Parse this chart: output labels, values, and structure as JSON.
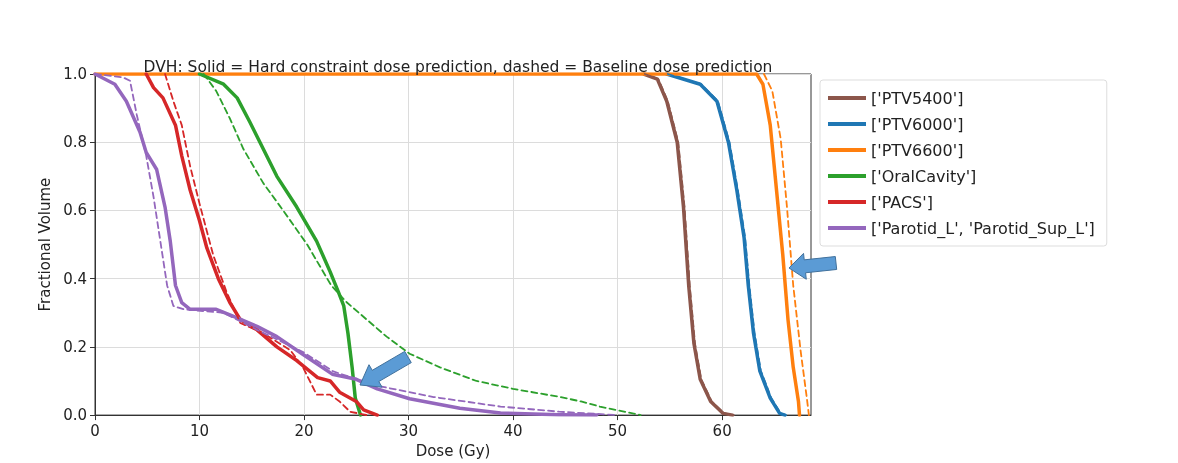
{
  "chart_data": {
    "type": "line",
    "title": "DVH: Solid = Hard constraint dose prediction, dashed = Baseline dose prediction",
    "xlabel": "Dose (Gy)",
    "ylabel": "Fractional Volume",
    "xlim": [
      0,
      68.5
    ],
    "ylim": [
      0,
      1
    ],
    "xticks": [
      0,
      10,
      20,
      30,
      40,
      50,
      60
    ],
    "yticks": [
      {
        "value": 0,
        "label": "0.0"
      },
      {
        "value": 0.2,
        "label": "0.2"
      },
      {
        "value": 0.4,
        "label": "0.4"
      },
      {
        "value": 0.6,
        "label": "0.6"
      },
      {
        "value": 0.8,
        "label": "0.8"
      },
      {
        "value": 1,
        "label": "1.0"
      }
    ],
    "grid": true,
    "legend": "top right",
    "marker": "none",
    "series": [
      {
        "name": "['PTV5400']",
        "color": "#8c564b",
        "line_style": "solid",
        "x": [
          52.5,
          53.8,
          54.7,
          55.7,
          56.3,
          56.8,
          57.3,
          57.9,
          58.9,
          60.1,
          61
        ],
        "values": [
          1,
          0.985,
          0.92,
          0.8,
          0.61,
          0.38,
          0.21,
          0.105,
          0.04,
          0.005,
          0
        ]
      },
      {
        "name": "['PTV6000']",
        "color": "#1f77b4",
        "line_style": "solid",
        "x": [
          54.7,
          57.9,
          59.5,
          60.6,
          61.4,
          62.1,
          62.5,
          63,
          63.6,
          64.6,
          65.5,
          66
        ],
        "values": [
          1,
          0.97,
          0.92,
          0.8,
          0.66,
          0.52,
          0.38,
          0.24,
          0.13,
          0.05,
          0.005,
          0
        ]
      },
      {
        "name": "['PTV6600']",
        "color": "#ff7f0e",
        "line_style": "solid",
        "x": [
          0,
          63.3,
          63.9,
          64.6,
          65.2,
          65.8,
          66.3,
          66.8,
          67.3,
          67.4
        ],
        "values": [
          1,
          1,
          0.97,
          0.85,
          0.66,
          0.47,
          0.28,
          0.14,
          0.04,
          0
        ]
      },
      {
        "name": "['OralCavity']",
        "color": "#2ca02c",
        "line_style": "solid",
        "x": [
          10,
          12.3,
          13.6,
          14.8,
          16.1,
          17.4,
          19.3,
          21.2,
          22.5,
          23.3,
          23.8,
          24.2,
          24.6,
          24.9,
          25.4
        ],
        "values": [
          1,
          0.97,
          0.93,
          0.86,
          0.78,
          0.7,
          0.61,
          0.51,
          0.42,
          0.36,
          0.32,
          0.24,
          0.14,
          0.05,
          0
        ]
      },
      {
        "name": "['PACS']",
        "color": "#d62728",
        "line_style": "solid",
        "x": [
          4.9,
          5.6,
          6.5,
          7.7,
          8.3,
          9.1,
          10,
          10.7,
          11.8,
          12.9,
          13.9,
          15.5,
          17.4,
          19.3,
          21.3,
          22.5,
          23.4,
          25,
          25.7,
          27
        ],
        "values": [
          1,
          0.96,
          0.93,
          0.85,
          0.76,
          0.66,
          0.57,
          0.49,
          0.4,
          0.33,
          0.28,
          0.25,
          0.2,
          0.16,
          0.11,
          0.1,
          0.067,
          0.04,
          0.015,
          0
        ]
      },
      {
        "name": "['Parotid_L', 'Parotid_Sup_L']",
        "color": "#9467bd",
        "line_style": "solid",
        "x": [
          0,
          1.9,
          3,
          4.3,
          4.9,
          5.9,
          6.7,
          7.2,
          7.7,
          8.3,
          9.1,
          11.6,
          13.2,
          15.5,
          17.4,
          19.8,
          22.7,
          25,
          27,
          30.1,
          34.9,
          38.8,
          44.4,
          48
        ],
        "values": [
          1,
          0.97,
          0.92,
          0.83,
          0.77,
          0.72,
          0.61,
          0.51,
          0.38,
          0.33,
          0.31,
          0.31,
          0.29,
          0.26,
          0.23,
          0.18,
          0.12,
          0.105,
          0.077,
          0.048,
          0.02,
          0.006,
          0.001,
          0
        ]
      },
      {
        "color": "#8c564b",
        "line_style": "dashed",
        "x": [
          52.6,
          53.9,
          54.8,
          55.8,
          56.4,
          56.9,
          57.4,
          58,
          59,
          60.2,
          61.1
        ],
        "values": [
          1,
          0.985,
          0.92,
          0.8,
          0.61,
          0.38,
          0.21,
          0.105,
          0.04,
          0.005,
          0
        ]
      },
      {
        "color": "#1f77b4",
        "line_style": "dashed",
        "x": [
          54.8,
          58,
          59.6,
          60.7,
          61.5,
          62.2,
          62.6,
          63.1,
          63.7,
          64.7,
          65.6,
          66.1
        ],
        "values": [
          1,
          0.97,
          0.92,
          0.8,
          0.66,
          0.52,
          0.38,
          0.24,
          0.13,
          0.05,
          0.005,
          0
        ]
      },
      {
        "color": "#ff7f0e",
        "line_style": "dashed",
        "x": [
          64,
          64.8,
          65.6,
          66.2,
          66.8,
          67.5,
          68.1,
          68.3
        ],
        "values": [
          1,
          0.95,
          0.81,
          0.61,
          0.38,
          0.19,
          0.05,
          0
        ]
      },
      {
        "color": "#2ca02c",
        "line_style": "dashed",
        "x": [
          10.4,
          11.6,
          12.9,
          14.2,
          16.1,
          18,
          20.3,
          22.6,
          24.1,
          26,
          27.9,
          30.1,
          33,
          36.5,
          40,
          44.5,
          46.5,
          48.3,
          52.2
        ],
        "values": [
          1,
          0.95,
          0.87,
          0.78,
          0.68,
          0.6,
          0.5,
          0.38,
          0.33,
          0.28,
          0.23,
          0.18,
          0.14,
          0.1,
          0.077,
          0.053,
          0.04,
          0.025,
          0
        ]
      },
      {
        "color": "#d62728",
        "line_style": "dashed",
        "x": [
          6.7,
          7.5,
          8.3,
          9.1,
          10,
          11.3,
          12.6,
          13.9,
          16.1,
          18.7,
          19.9,
          21.2,
          22.5,
          23.4,
          24.4,
          26
        ],
        "values": [
          1,
          0.92,
          0.85,
          0.73,
          0.62,
          0.47,
          0.36,
          0.27,
          0.24,
          0.19,
          0.14,
          0.06,
          0.06,
          0.04,
          0.01,
          0
        ]
      },
      {
        "color": "#9467bd",
        "line_style": "dashed",
        "x": [
          0,
          2.7,
          3.35,
          4,
          4.9,
          5.6,
          6.2,
          6.9,
          7.5,
          8.5,
          12.3,
          15.5,
          19.9,
          22.8,
          27,
          32.4,
          38.8,
          44.4,
          50
        ],
        "values": [
          1,
          0.99,
          0.98,
          0.88,
          0.76,
          0.64,
          0.52,
          0.38,
          0.32,
          0.31,
          0.3,
          0.25,
          0.185,
          0.128,
          0.086,
          0.053,
          0.025,
          0.01,
          0
        ]
      }
    ]
  }
}
